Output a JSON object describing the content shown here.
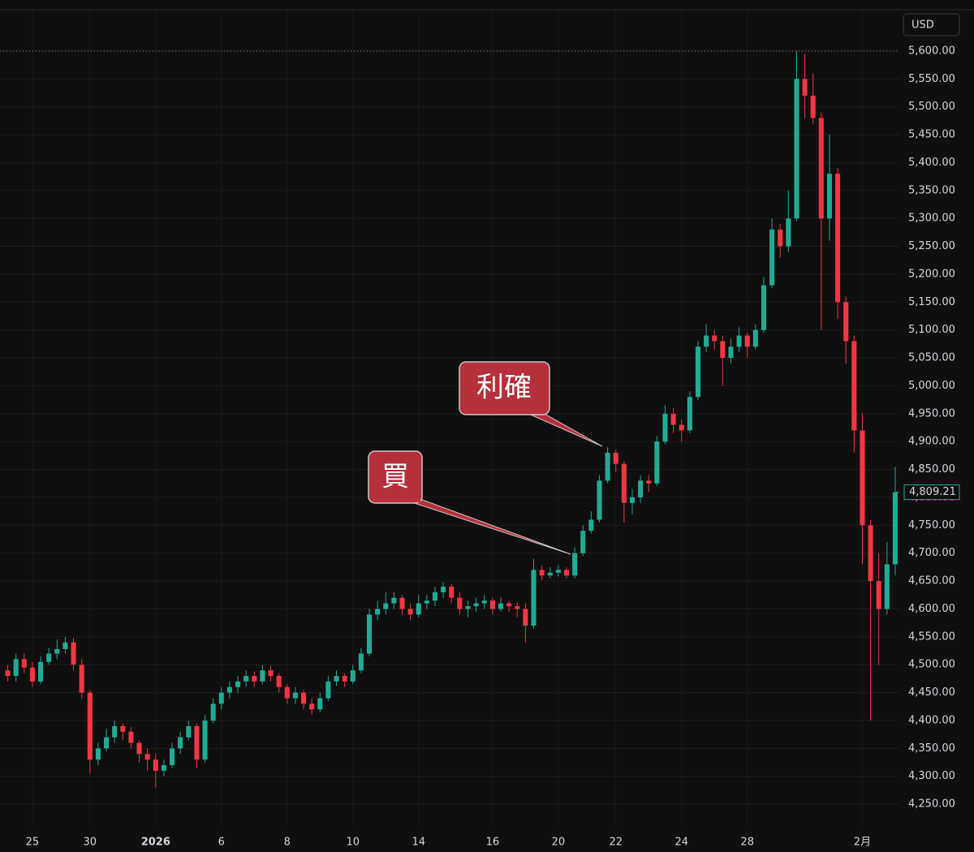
{
  "chart_data": {
    "type": "candlestick",
    "currency": "USD",
    "up_color": "#22ab94",
    "down_color": "#f23645",
    "grid": true,
    "price_line": 5600,
    "last_price": {
      "value": 4809.21,
      "label": "4,809.21"
    },
    "annotations": [
      "利確",
      "買"
    ],
    "categories": [
      null,
      null,
      null,
      "25",
      null,
      null,
      null,
      null,
      null,
      null,
      "30",
      null,
      null,
      null,
      null,
      null,
      null,
      null,
      "2026",
      null,
      null,
      null,
      null,
      null,
      null,
      null,
      "6",
      null,
      null,
      null,
      null,
      null,
      null,
      null,
      "8",
      null,
      null,
      null,
      null,
      null,
      null,
      null,
      "10",
      null,
      null,
      null,
      null,
      null,
      null,
      null,
      "14",
      null,
      null,
      null,
      null,
      null,
      null,
      null,
      null,
      "16",
      null,
      null,
      null,
      null,
      null,
      null,
      null,
      "20",
      null,
      null,
      null,
      null,
      null,
      null,
      "22",
      null,
      null,
      null,
      null,
      null,
      null,
      null,
      "24",
      null,
      null,
      null,
      null,
      null,
      null,
      null,
      "28",
      null,
      null,
      null,
      null,
      null,
      null,
      null,
      null,
      null,
      null,
      null,
      null,
      null,
      "2月",
      null,
      null,
      null,
      null
    ],
    "open": [
      4490,
      4480,
      4510,
      4495,
      4470,
      4505,
      4520,
      4528,
      4540,
      4500,
      4450,
      4330,
      4350,
      4370,
      4390,
      4380,
      4360,
      4340,
      4330,
      4310,
      4320,
      4350,
      4370,
      4390,
      4330,
      4400,
      4430,
      4450,
      4460,
      4470,
      4480,
      4470,
      4490,
      4480,
      4460,
      4440,
      4450,
      4430,
      4420,
      4440,
      4470,
      4480,
      4470,
      4490,
      4520,
      4590,
      4600,
      4610,
      4620,
      4600,
      4590,
      4610,
      4615,
      4630,
      4640,
      4620,
      4600,
      4605,
      4610,
      4615,
      4600,
      4610,
      4605,
      4600,
      4570,
      4670,
      4660,
      4665,
      4670,
      4660,
      4700,
      4740,
      4760,
      4830,
      4880,
      4860,
      4790,
      4800,
      4830,
      4825,
      4900,
      4950,
      4930,
      4920,
      4980,
      5070,
      5090,
      5080,
      5050,
      5070,
      5090,
      5070,
      5100,
      5180,
      5280,
      5250,
      5300,
      5550,
      5520,
      5480,
      5300,
      5380,
      5150,
      5080,
      4920,
      4750,
      4650,
      4600,
      4680
    ],
    "high": [
      4500,
      4520,
      4520,
      4505,
      4515,
      4530,
      4545,
      4550,
      4548,
      4510,
      4455,
      4360,
      4385,
      4400,
      4395,
      4388,
      4365,
      4350,
      4340,
      4330,
      4360,
      4380,
      4400,
      4395,
      4410,
      4440,
      4460,
      4470,
      4480,
      4490,
      4488,
      4500,
      4498,
      4485,
      4465,
      4460,
      4455,
      4440,
      4450,
      4480,
      4490,
      4485,
      4500,
      4530,
      4600,
      4615,
      4630,
      4630,
      4625,
      4610,
      4625,
      4625,
      4640,
      4648,
      4645,
      4630,
      4615,
      4620,
      4625,
      4620,
      4620,
      4615,
      4612,
      4610,
      4690,
      4678,
      4675,
      4678,
      4675,
      4710,
      4750,
      4775,
      4840,
      4890,
      4885,
      4865,
      4815,
      4840,
      4840,
      4910,
      4965,
      4960,
      4940,
      4990,
      5080,
      5110,
      5100,
      5090,
      5085,
      5105,
      5095,
      5110,
      5195,
      5300,
      5290,
      5350,
      5600,
      5595,
      5560,
      5490,
      5450,
      5390,
      5160,
      5090,
      4950,
      4760,
      4700,
      4720,
      4855
    ],
    "low": [
      4470,
      4470,
      4485,
      4460,
      4465,
      4500,
      4510,
      4520,
      4490,
      4440,
      4305,
      4320,
      4345,
      4360,
      4365,
      4350,
      4325,
      4310,
      4280,
      4300,
      4315,
      4340,
      4365,
      4315,
      4325,
      4395,
      4420,
      4440,
      4450,
      4460,
      4460,
      4465,
      4470,
      4450,
      4430,
      4430,
      4420,
      4410,
      4415,
      4435,
      4462,
      4460,
      4465,
      4485,
      4515,
      4580,
      4590,
      4600,
      4590,
      4580,
      4585,
      4600,
      4605,
      4620,
      4610,
      4590,
      4585,
      4595,
      4600,
      4590,
      4595,
      4595,
      4585,
      4540,
      4565,
      4652,
      4655,
      4658,
      4655,
      4655,
      4695,
      4735,
      4755,
      4825,
      4845,
      4755,
      4770,
      4790,
      4810,
      4820,
      4895,
      4915,
      4900,
      4915,
      4975,
      5060,
      5065,
      5000,
      5040,
      5060,
      5050,
      5065,
      5095,
      5175,
      5230,
      5240,
      5295,
      5480,
      5470,
      5100,
      5260,
      5120,
      5040,
      4880,
      4680,
      4400,
      4500,
      4590,
      4660
    ],
    "close": [
      4480,
      4510,
      4495,
      4470,
      4505,
      4520,
      4528,
      4540,
      4500,
      4450,
      4330,
      4350,
      4370,
      4390,
      4380,
      4360,
      4340,
      4330,
      4310,
      4320,
      4350,
      4370,
      4390,
      4330,
      4400,
      4430,
      4450,
      4460,
      4470,
      4480,
      4470,
      4490,
      4480,
      4460,
      4440,
      4450,
      4430,
      4420,
      4440,
      4470,
      4480,
      4470,
      4490,
      4520,
      4590,
      4600,
      4610,
      4620,
      4600,
      4590,
      4610,
      4615,
      4630,
      4640,
      4620,
      4600,
      4605,
      4610,
      4615,
      4600,
      4610,
      4605,
      4600,
      4570,
      4670,
      4660,
      4665,
      4670,
      4660,
      4700,
      4740,
      4760,
      4830,
      4880,
      4860,
      4790,
      4800,
      4830,
      4825,
      4900,
      4950,
      4930,
      4920,
      4980,
      5070,
      5090,
      5080,
      5050,
      5070,
      5090,
      5070,
      5100,
      5180,
      5280,
      5250,
      5300,
      5550,
      5520,
      5480,
      5300,
      5380,
      5150,
      5080,
      4920,
      4750,
      4650,
      4600,
      4680,
      4809.21
    ],
    "ylim": [
      4208,
      5674
    ],
    "yticks": [
      {
        "value": 4250,
        "label": "4,250.00"
      },
      {
        "value": 4300,
        "label": "4,300.00"
      },
      {
        "value": 4350,
        "label": "4,350.00"
      },
      {
        "value": 4400,
        "label": "4,400.00"
      },
      {
        "value": 4450,
        "label": "4,450.00"
      },
      {
        "value": 4500,
        "label": "4,500.00"
      },
      {
        "value": 4550,
        "label": "4,550.00"
      },
      {
        "value": 4600,
        "label": "4,600.00"
      },
      {
        "value": 4650,
        "label": "4,650.00"
      },
      {
        "value": 4700,
        "label": "4,700.00"
      },
      {
        "value": 4750,
        "label": "4,750.00"
      },
      {
        "value": 4800,
        "label": "4,800.00"
      },
      {
        "value": 4850,
        "label": "4,850.00"
      },
      {
        "value": 4900,
        "label": "4,900.00"
      },
      {
        "value": 4950,
        "label": "4,950.00"
      },
      {
        "value": 5000,
        "label": "5,000.00"
      },
      {
        "value": 5050,
        "label": "5,050.00"
      },
      {
        "value": 5100,
        "label": "5,100.00"
      },
      {
        "value": 5150,
        "label": "5,150.00"
      },
      {
        "value": 5200,
        "label": "5,200.00"
      },
      {
        "value": 5250,
        "label": "5,250.00"
      },
      {
        "value": 5300,
        "label": "5,300.00"
      },
      {
        "value": 5350,
        "label": "5,350.00"
      },
      {
        "value": 5400,
        "label": "5,400.00"
      },
      {
        "value": 5450,
        "label": "5,450.00"
      },
      {
        "value": 5500,
        "label": "5,500.00"
      },
      {
        "value": 5550,
        "label": "5,550.00"
      },
      {
        "value": 5600,
        "label": "5,600.00"
      }
    ]
  }
}
